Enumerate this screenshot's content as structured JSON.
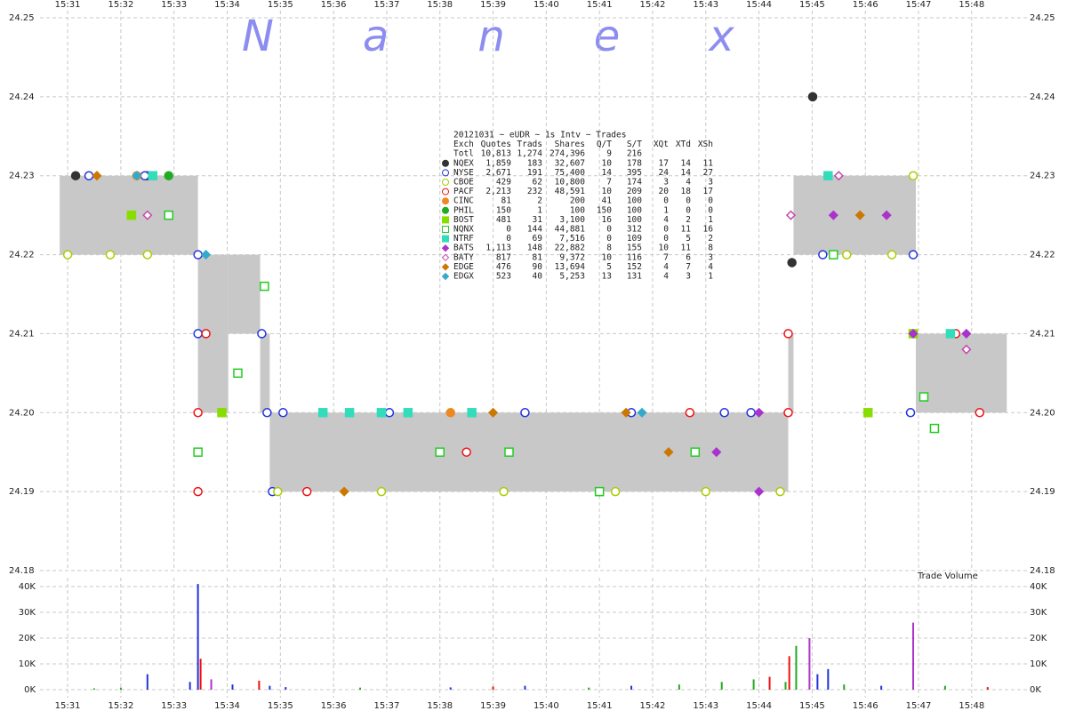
{
  "chart_data": [
    {
      "type": "scatter",
      "watermark": "Nanex",
      "xlim": [
        930.48,
        949.04
      ],
      "xticks": [
        {
          "value": 931,
          "label": "15:31"
        },
        {
          "value": 932,
          "label": "15:32"
        },
        {
          "value": 933,
          "label": "15:33"
        },
        {
          "value": 934,
          "label": "15:34"
        },
        {
          "value": 935,
          "label": "15:35"
        },
        {
          "value": 936,
          "label": "15:36"
        },
        {
          "value": 937,
          "label": "15:37"
        },
        {
          "value": 938,
          "label": "15:38"
        },
        {
          "value": 939,
          "label": "15:39"
        },
        {
          "value": 940,
          "label": "15:40"
        },
        {
          "value": 941,
          "label": "15:41"
        },
        {
          "value": 942,
          "label": "15:42"
        },
        {
          "value": 943,
          "label": "15:43"
        },
        {
          "value": 944,
          "label": "15:44"
        },
        {
          "value": 945,
          "label": "15:45"
        },
        {
          "value": 946,
          "label": "15:46"
        },
        {
          "value": 947,
          "label": "15:47"
        },
        {
          "value": 948,
          "label": "15:48"
        }
      ],
      "ylim": [
        24.18,
        24.25
      ],
      "yticks": [
        {
          "value": 24.18,
          "label": "24.18"
        },
        {
          "value": 24.19,
          "label": "24.19"
        },
        {
          "value": 24.2,
          "label": "24.20"
        },
        {
          "value": 24.21,
          "label": "24.21"
        },
        {
          "value": 24.22,
          "label": "24.22"
        },
        {
          "value": 24.23,
          "label": "24.23"
        },
        {
          "value": 24.24,
          "label": "24.24"
        },
        {
          "value": 24.25,
          "label": "24.25"
        }
      ],
      "grid": true,
      "nbbo": {
        "color": "#c8c8c8",
        "x0": [
          930.85,
          933.45,
          934.02,
          934.62,
          934.8,
          944.55,
          944.65,
          946.95
        ],
        "x1": [
          933.45,
          934.02,
          934.62,
          934.8,
          944.55,
          944.65,
          946.95,
          948.66
        ],
        "bid": [
          24.22,
          24.2,
          24.21,
          24.2,
          24.19,
          24.2,
          24.22,
          24.2
        ],
        "ask": [
          24.23,
          24.22,
          24.22,
          24.21,
          24.2,
          24.21,
          24.23,
          24.21
        ]
      },
      "table": {
        "title": "20121031 ~ eUDR ~ 1s Intv ~ Trades",
        "columns": [
          "Exch",
          "Quotes",
          "Trads",
          "Shares",
          "Q/T",
          "S/T",
          "XQt",
          "XTd",
          "XSh"
        ],
        "total": [
          "Totl",
          "10,813",
          "1,274",
          "274,396",
          "9",
          "216"
        ]
      },
      "series": [
        {
          "name": "NQEX",
          "color": "#333333",
          "marker": "circle",
          "filled": true,
          "stats": [
            "1,859",
            "183",
            "32,607",
            "10",
            "178",
            "17",
            "14",
            "11"
          ],
          "x": [
            931.15,
            932.5,
            944.62,
            945.01
          ],
          "values": [
            24.23,
            24.23,
            24.219,
            24.24
          ]
        },
        {
          "name": "NYSE",
          "color": "#2233dd",
          "marker": "circle",
          "filled": false,
          "stats": [
            "2,671",
            "191",
            "75,400",
            "14",
            "395",
            "24",
            "14",
            "27"
          ],
          "x": [
            931.4,
            932.45,
            933.45,
            933.45,
            934.65,
            934.75,
            934.85,
            935.05,
            937.05,
            939.6,
            941.6,
            943.35,
            943.85,
            945.3,
            945.2,
            946.85,
            946.9
          ],
          "values": [
            24.23,
            24.23,
            24.22,
            24.21,
            24.21,
            24.2,
            24.19,
            24.2,
            24.2,
            24.2,
            24.2,
            24.2,
            24.2,
            24.23,
            24.22,
            24.2,
            24.22
          ]
        },
        {
          "name": "CBOE",
          "color": "#aacc00",
          "marker": "circle",
          "filled": false,
          "stats": [
            "429",
            "62",
            "10,800",
            "7",
            "174",
            "3",
            "4",
            "3"
          ],
          "x": [
            931.0,
            931.8,
            932.5,
            934.95,
            936.9,
            939.2,
            941.3,
            943.0,
            944.4,
            945.65,
            946.5,
            946.9
          ],
          "values": [
            24.22,
            24.22,
            24.22,
            24.19,
            24.19,
            24.19,
            24.19,
            24.19,
            24.19,
            24.22,
            24.22,
            24.23
          ]
        },
        {
          "name": "PACF",
          "color": "#ee1111",
          "marker": "circle",
          "filled": false,
          "stats": [
            "2,213",
            "232",
            "48,591",
            "10",
            "209",
            "20",
            "18",
            "17"
          ],
          "x": [
            933.45,
            933.45,
            933.6,
            935.5,
            938.5,
            942.7,
            944.55,
            944.55,
            948.15,
            947.7
          ],
          "values": [
            24.2,
            24.19,
            24.21,
            24.19,
            24.195,
            24.2,
            24.2,
            24.21,
            24.2,
            24.21
          ]
        },
        {
          "name": "CINC",
          "color": "#ee8822",
          "marker": "circle",
          "filled": true,
          "stats": [
            "81",
            "2",
            "200",
            "41",
            "100",
            "0",
            "0",
            "0"
          ],
          "x": [
            932.3,
            938.2
          ],
          "values": [
            24.23,
            24.2
          ]
        },
        {
          "name": "PHIL",
          "color": "#22aa22",
          "marker": "circle",
          "filled": true,
          "stats": [
            "150",
            "1",
            "100",
            "150",
            "100",
            "1",
            "0",
            "0"
          ],
          "x": [
            932.9
          ],
          "values": [
            24.23
          ]
        },
        {
          "name": "BOST",
          "color": "#88dd00",
          "marker": "square",
          "filled": true,
          "stats": [
            "481",
            "31",
            "3,100",
            "16",
            "100",
            "4",
            "2",
            "1"
          ],
          "x": [
            932.2,
            933.9,
            946.05,
            946.9
          ],
          "values": [
            24.225,
            24.2,
            24.2,
            24.21
          ]
        },
        {
          "name": "NQNX",
          "color": "#22cc22",
          "marker": "square",
          "filled": false,
          "stats": [
            "0",
            "144",
            "44,881",
            "0",
            "312",
            "0",
            "11",
            "16"
          ],
          "x": [
            932.9,
            933.45,
            934.7,
            934.2,
            938.0,
            939.3,
            941.0,
            942.8,
            945.4,
            947.1,
            947.3
          ],
          "values": [
            24.225,
            24.195,
            24.216,
            24.205,
            24.195,
            24.195,
            24.19,
            24.195,
            24.22,
            24.202,
            24.198
          ]
        },
        {
          "name": "NTRF",
          "color": "#33ddbb",
          "marker": "square",
          "filled": true,
          "stats": [
            "0",
            "69",
            "7,516",
            "0",
            "109",
            "0",
            "5",
            "2"
          ],
          "x": [
            935.8,
            936.3,
            936.9,
            937.4,
            938.6,
            932.6,
            945.3,
            947.6
          ],
          "values": [
            24.2,
            24.2,
            24.2,
            24.2,
            24.2,
            24.23,
            24.23,
            24.21
          ]
        },
        {
          "name": "BATS",
          "color": "#aa33cc",
          "marker": "diamond",
          "filled": true,
          "stats": [
            "1,113",
            "148",
            "22,882",
            "8",
            "155",
            "10",
            "11",
            "8"
          ],
          "x": [
            943.2,
            944.0,
            944.0,
            945.4,
            946.4,
            946.9,
            947.9
          ],
          "values": [
            24.195,
            24.2,
            24.19,
            24.225,
            24.225,
            24.21,
            24.21
          ]
        },
        {
          "name": "BATY",
          "color": "#cc44aa",
          "marker": "diamond",
          "filled": false,
          "stats": [
            "817",
            "81",
            "9,372",
            "10",
            "116",
            "7",
            "6",
            "3"
          ],
          "x": [
            932.5,
            944.6,
            945.5,
            947.9
          ],
          "values": [
            24.225,
            24.225,
            24.23,
            24.208
          ]
        },
        {
          "name": "EDGE",
          "color": "#cc7700",
          "marker": "diamond",
          "filled": true,
          "stats": [
            "476",
            "90",
            "13,694",
            "5",
            "152",
            "4",
            "7",
            "4"
          ],
          "x": [
            931.55,
            936.2,
            939.0,
            941.5,
            942.3,
            945.9
          ],
          "values": [
            24.23,
            24.19,
            24.2,
            24.2,
            24.195,
            24.225
          ]
        },
        {
          "name": "EDGX",
          "color": "#33aacc",
          "marker": "diamond",
          "filled": true,
          "stats": [
            "523",
            "40",
            "5,253",
            "13",
            "131",
            "4",
            "3",
            "1"
          ],
          "x": [
            932.3,
            933.6,
            941.8
          ],
          "values": [
            24.23,
            24.22,
            24.2
          ]
        }
      ]
    },
    {
      "type": "bar",
      "title": "Trade Volume",
      "xlim": [
        930.48,
        949.04
      ],
      "xticks": [
        {
          "value": 931,
          "label": "15:31"
        },
        {
          "value": 932,
          "label": "15:32"
        },
        {
          "value": 933,
          "label": "15:33"
        },
        {
          "value": 934,
          "label": "15:34"
        },
        {
          "value": 935,
          "label": "15:35"
        },
        {
          "value": 936,
          "label": "15:36"
        },
        {
          "value": 937,
          "label": "15:37"
        },
        {
          "value": 938,
          "label": "15:38"
        },
        {
          "value": 939,
          "label": "15:39"
        },
        {
          "value": 940,
          "label": "15:40"
        },
        {
          "value": 941,
          "label": "15:41"
        },
        {
          "value": 942,
          "label": "15:42"
        },
        {
          "value": 943,
          "label": "15:43"
        },
        {
          "value": 944,
          "label": "15:44"
        },
        {
          "value": 945,
          "label": "15:45"
        },
        {
          "value": 946,
          "label": "15:46"
        },
        {
          "value": 947,
          "label": "15:47"
        },
        {
          "value": 948,
          "label": "15:48"
        }
      ],
      "ylim": [
        0,
        40000
      ],
      "yticks": [
        {
          "value": 0,
          "label": "0K"
        },
        {
          "value": 10000,
          "label": "10K"
        },
        {
          "value": 20000,
          "label": "20K"
        },
        {
          "value": 30000,
          "label": "30K"
        },
        {
          "value": 40000,
          "label": "40K"
        }
      ],
      "grid": true,
      "x": [
        931.5,
        932.0,
        932.5,
        933.3,
        933.45,
        933.5,
        933.7,
        934.1,
        934.6,
        934.8,
        935.1,
        936.5,
        938.2,
        939.0,
        939.6,
        940.8,
        941.6,
        942.5,
        943.3,
        943.9,
        944.2,
        944.5,
        944.57,
        944.7,
        944.95,
        945.1,
        945.3,
        945.6,
        946.3,
        946.9,
        947.5,
        948.3
      ],
      "values": [
        500,
        800,
        6000,
        3000,
        41000,
        12000,
        4000,
        2000,
        3500,
        1500,
        1000,
        800,
        900,
        1200,
        1500,
        800,
        1500,
        2000,
        3000,
        4000,
        5000,
        3000,
        13000,
        17000,
        20000,
        6000,
        8000,
        2000,
        1500,
        26000,
        1500,
        1000
      ],
      "colors": [
        "#22aa22",
        "#22aa22",
        "#2233dd",
        "#2233dd",
        "#2233dd",
        "#ee1111",
        "#aa33cc",
        "#2233dd",
        "#ee1111",
        "#2233dd",
        "#2233dd",
        "#22aa22",
        "#2233dd",
        "#ee1111",
        "#2233dd",
        "#22aa22",
        "#2233dd",
        "#22aa22",
        "#22aa22",
        "#22aa22",
        "#ee1111",
        "#22aa22",
        "#ee1111",
        "#22aa22",
        "#aa33cc",
        "#2233dd",
        "#2233dd",
        "#22aa22",
        "#2233dd",
        "#aa33cc",
        "#22aa22",
        "#ee1111"
      ]
    }
  ]
}
